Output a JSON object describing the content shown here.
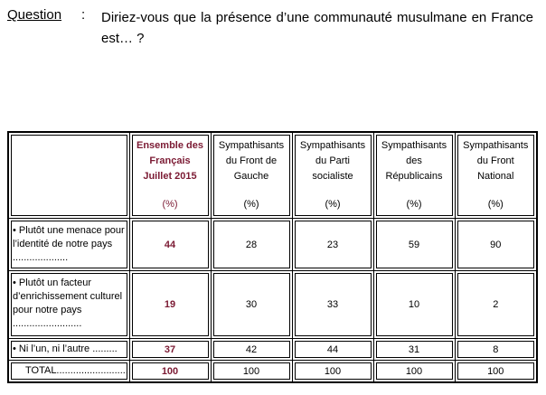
{
  "question": {
    "label": "Question",
    "colon": ":",
    "text": "Diriez-vous que la présence d’une communauté musulmane en France est… ?"
  },
  "table": {
    "columns": [
      {
        "line1": "Ensemble des",
        "line2": "Français",
        "line3": "Juillet 2015",
        "unit": "(%)",
        "highlight": true
      },
      {
        "line1": "Sympathisants",
        "line2": "du Front de",
        "line3": "Gauche",
        "unit": "(%)",
        "highlight": false
      },
      {
        "line1": "Sympathisants",
        "line2": "du Parti",
        "line3": "socialiste",
        "unit": "(%)",
        "highlight": false
      },
      {
        "line1": "Sympathisants",
        "line2": "des",
        "line3": "Républicains",
        "unit": "(%)",
        "highlight": false
      },
      {
        "line1": "Sympathisants",
        "line2": "du Front",
        "line3": "National",
        "unit": "(%)",
        "highlight": false
      }
    ],
    "rows": [
      {
        "label": "• Plutôt une menace pour l’identité de notre pays ....................",
        "values": [
          "44",
          "28",
          "23",
          "59",
          "90"
        ]
      },
      {
        "label": "• Plutôt un facteur d’enrichissement culturel pour notre pays .........................",
        "values": [
          "19",
          "30",
          "33",
          "10",
          "2"
        ]
      },
      {
        "label": "• Ni l’un, ni l’autre .........",
        "values": [
          "37",
          "42",
          "44",
          "31",
          "8"
        ]
      },
      {
        "label": "TOTAL..........................",
        "values": [
          "100",
          "100",
          "100",
          "100",
          "100"
        ]
      }
    ]
  }
}
